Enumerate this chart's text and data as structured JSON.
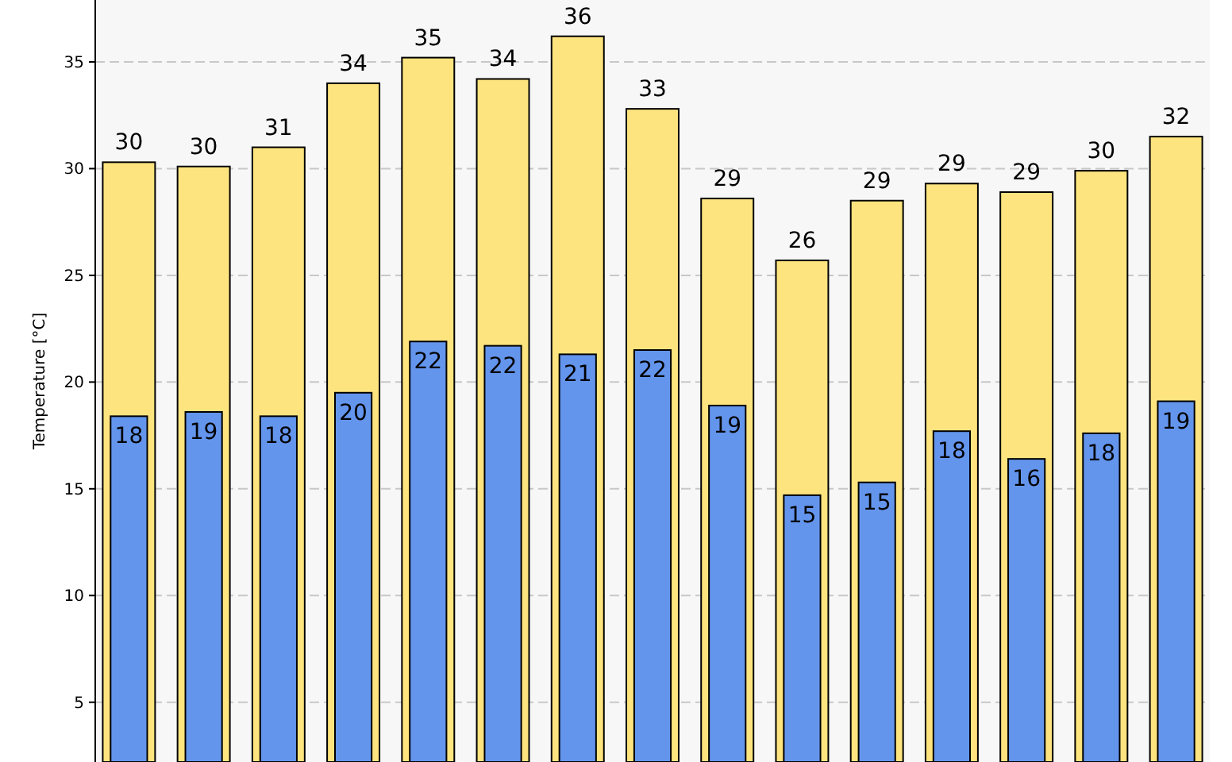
{
  "chart_data": {
    "type": "bar",
    "ylabel": "Temperature [°C]",
    "categories": [
      null,
      null,
      null,
      null,
      null,
      null,
      null,
      null,
      null,
      null,
      null,
      null,
      null,
      null,
      null
    ],
    "series": [
      {
        "color": "#fde47f",
        "values": [
          30.3,
          30.1,
          31.0,
          34.0,
          35.2,
          34.2,
          36.2,
          32.8,
          28.6,
          25.7,
          28.5,
          29.3,
          28.9,
          29.9,
          31.5
        ],
        "value_labels": [
          "30",
          "30",
          "31",
          "34",
          "35",
          "34",
          "36",
          "33",
          "29",
          "26",
          "29",
          "29",
          "29",
          "30",
          "32"
        ]
      },
      {
        "color": "#6495ed",
        "values": [
          18.4,
          18.6,
          18.4,
          19.5,
          21.9,
          21.7,
          21.3,
          21.5,
          18.9,
          14.7,
          15.3,
          17.7,
          16.4,
          17.6,
          19.1
        ],
        "value_labels": [
          "18",
          "19",
          "18",
          "20",
          "22",
          "22",
          "21",
          "22",
          "19",
          "15",
          "15",
          "18",
          "16",
          "18",
          "19"
        ]
      }
    ],
    "ylim": [
      2.2,
      37.9
    ],
    "yticks": [
      5,
      10,
      15,
      20,
      25,
      30,
      35
    ],
    "grid": "y",
    "tick_labels": "y"
  }
}
